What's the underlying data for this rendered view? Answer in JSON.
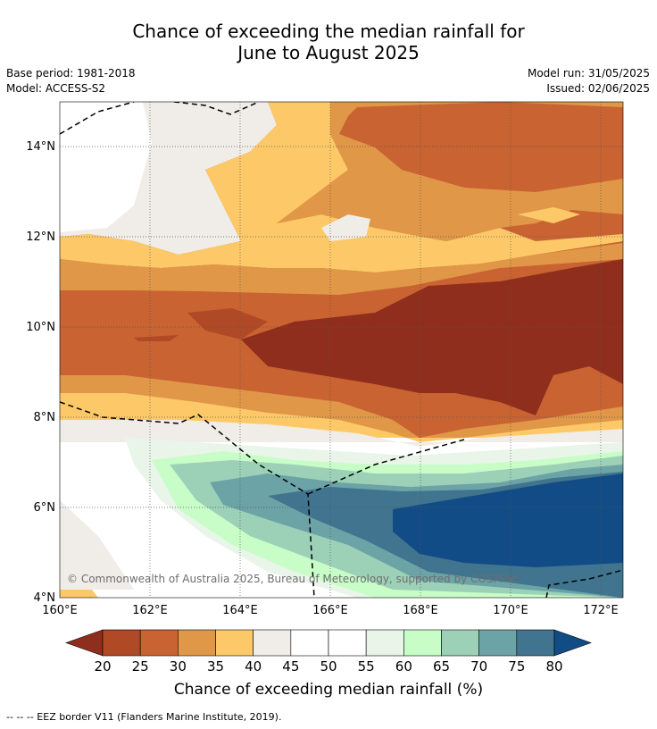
{
  "title_line1": "Chance of exceeding the median rainfall for",
  "title_line2": "June to August 2025",
  "base_period": "Base period: 1981-2018",
  "model": "Model: ACCESS-S2",
  "model_run": "Model run: 31/05/2025",
  "issued": "Issued: 02/06/2025",
  "copyright": "© Commonwealth of Australia 2025, Bureau of Meteorology, supported by COSPPac",
  "lat_labels": [
    "14°N",
    "12°N",
    "10°N",
    "8°N",
    "6°N",
    "4°N"
  ],
  "lon_labels": [
    "160°E",
    "162°E",
    "164°E",
    "166°E",
    "168°E",
    "170°E",
    "172°E"
  ],
  "colorbar": {
    "ticks": [
      "20",
      "25",
      "30",
      "35",
      "40",
      "45",
      "50",
      "55",
      "60",
      "65",
      "70",
      "75",
      "80"
    ],
    "colors": [
      "#8f2e1c",
      "#b04a26",
      "#c96332",
      "#e09748",
      "#fdc968",
      "#f0ede8",
      "#ffffff",
      "#ffffff",
      "#e9f5e9",
      "#c8fdc8",
      "#9cd1b8",
      "#6ca3a6",
      "#40748f",
      "#114c86"
    ],
    "label": "Chance of exceeding median rainfall (%)"
  },
  "footer": "--  --  -- EEZ border V11 (Flanders Marine Institute, 2019)."
}
